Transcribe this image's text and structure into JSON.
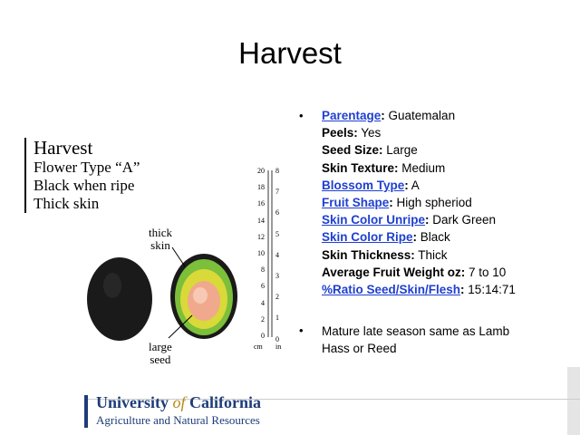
{
  "slide": {
    "title": "Harvest",
    "caption": {
      "heading": "Harvest",
      "lines": [
        "Flower Type “A”",
        "Black when ripe",
        "Thick skin"
      ]
    },
    "figure_labels": {
      "thick_skin": [
        "thick",
        "skin"
      ],
      "large_seed": [
        "large",
        "seed"
      ],
      "cm_scale": [
        "20",
        "18",
        "16",
        "14",
        "12",
        "10",
        "8",
        "6",
        "4",
        "2",
        "0"
      ],
      "in_scale": [
        "8",
        "7",
        "6",
        "5",
        "4",
        "3",
        "2",
        "1",
        "0"
      ],
      "cm_unit": "cm",
      "in_unit": "in"
    },
    "properties": [
      {
        "label": "Parentage",
        "value": " Guatemalan",
        "link": true
      },
      {
        "label": "Peels:",
        "value": " Yes",
        "link": false
      },
      {
        "label": "Seed Size:",
        "value": " Large",
        "link": false
      },
      {
        "label": "Skin Texture:",
        "value": " Medium",
        "link": false
      },
      {
        "label": "Blossom Type",
        "value": " A",
        "link": true
      },
      {
        "label": "Fruit Shape",
        "value": " High spheriod",
        "link": true
      },
      {
        "label": "Skin Color Unripe",
        "value": " Dark Green",
        "link": true
      },
      {
        "label": "Skin Color Ripe",
        "value": " Black",
        "link": true
      },
      {
        "label": "Skin Thickness:",
        "value": " Thick",
        "link": false
      },
      {
        "label": "Average Fruit Weight oz:",
        "value": " 7 to 10",
        "link": false
      },
      {
        "label": "%Ratio Seed/Skin/Flesh",
        "value": " 15:14:71",
        "link": true
      }
    ],
    "note": "Mature late season same as Lamb Hass or Reed",
    "bullet_glyph": "•",
    "footer": {
      "university": "University",
      "of": "of",
      "california": "California",
      "division": "Agriculture and Natural Resources"
    }
  }
}
